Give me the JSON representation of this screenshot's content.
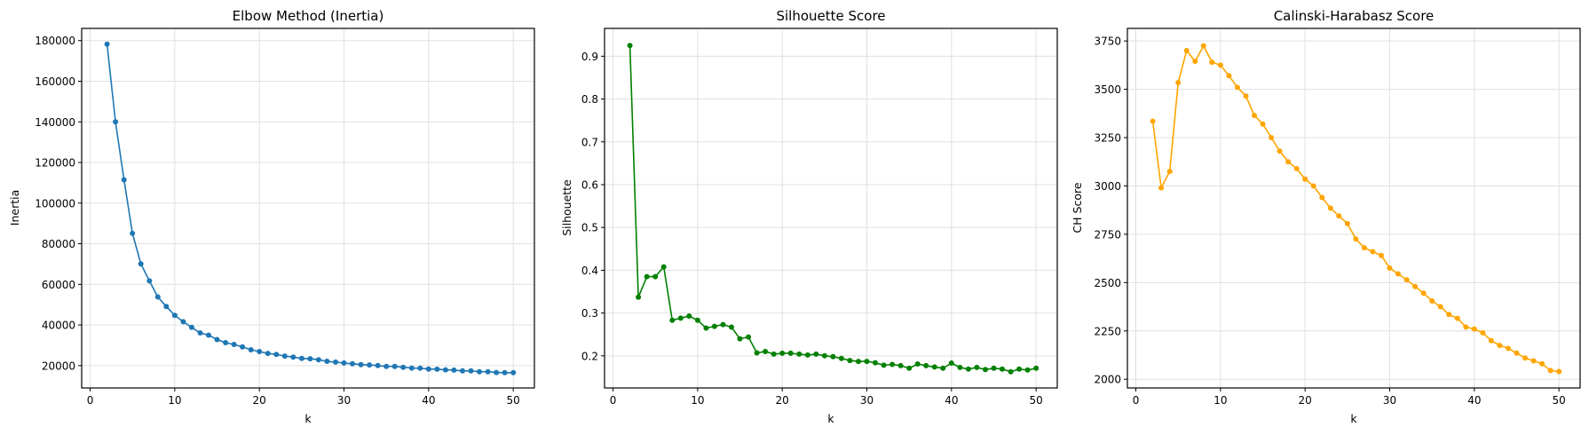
{
  "chart_data": [
    {
      "type": "line",
      "title": "Elbow Method (Inertia)",
      "xlabel": "k",
      "ylabel": "Inertia",
      "color": "#1f77b4",
      "marker": "circle",
      "grid": true,
      "xlim": [
        -1,
        52.5
      ],
      "ylim": [
        9000,
        186000
      ],
      "xticks": [
        0,
        10,
        20,
        30,
        40,
        50
      ],
      "yticks": [
        20000,
        40000,
        60000,
        80000,
        100000,
        120000,
        140000,
        160000,
        180000
      ],
      "x": [
        2,
        3,
        4,
        5,
        6,
        7,
        8,
        9,
        10,
        11,
        12,
        13,
        14,
        15,
        16,
        17,
        18,
        19,
        20,
        21,
        22,
        23,
        24,
        25,
        26,
        27,
        28,
        29,
        30,
        31,
        32,
        33,
        34,
        35,
        36,
        37,
        38,
        39,
        40,
        41,
        42,
        43,
        44,
        45,
        46,
        47,
        48,
        49,
        50
      ],
      "values": [
        178200,
        140000,
        111500,
        85100,
        70100,
        61700,
        53800,
        49100,
        44700,
        41600,
        38800,
        36100,
        35000,
        32800,
        31300,
        30400,
        29200,
        27800,
        26900,
        26000,
        25500,
        24700,
        24200,
        23500,
        23400,
        22900,
        22100,
        21700,
        21300,
        20900,
        20500,
        20300,
        20000,
        19600,
        19600,
        19200,
        18800,
        18700,
        18300,
        18200,
        17900,
        17800,
        17400,
        17400,
        17000,
        17000,
        16600,
        16500,
        16500
      ]
    },
    {
      "type": "line",
      "title": "Silhouette Score",
      "xlabel": "k",
      "ylabel": "Silhouette",
      "color": "#008000",
      "marker": "circle",
      "grid": true,
      "xlim": [
        -1,
        52.5
      ],
      "ylim": [
        0.125,
        0.965
      ],
      "xticks": [
        0,
        10,
        20,
        30,
        40,
        50
      ],
      "yticks": [
        0.2,
        0.3,
        0.4,
        0.5,
        0.6,
        0.7,
        0.8,
        0.9
      ],
      "x": [
        2,
        3,
        4,
        5,
        6,
        7,
        8,
        9,
        10,
        11,
        12,
        13,
        14,
        15,
        16,
        17,
        18,
        19,
        20,
        21,
        22,
        23,
        24,
        25,
        26,
        27,
        28,
        29,
        30,
        31,
        32,
        33,
        34,
        35,
        36,
        37,
        38,
        39,
        40,
        41,
        42,
        43,
        44,
        45,
        46,
        47,
        48,
        49,
        50
      ],
      "values": [
        0.925,
        0.337,
        0.385,
        0.385,
        0.408,
        0.283,
        0.288,
        0.293,
        0.283,
        0.265,
        0.269,
        0.273,
        0.267,
        0.24,
        0.244,
        0.207,
        0.21,
        0.204,
        0.206,
        0.206,
        0.204,
        0.202,
        0.204,
        0.2,
        0.198,
        0.194,
        0.189,
        0.187,
        0.187,
        0.184,
        0.178,
        0.18,
        0.177,
        0.171,
        0.181,
        0.177,
        0.174,
        0.171,
        0.183,
        0.173,
        0.169,
        0.173,
        0.168,
        0.171,
        0.169,
        0.163,
        0.169,
        0.167,
        0.171
      ]
    },
    {
      "type": "line",
      "title": "Calinski-Harabasz Score",
      "xlabel": "k",
      "ylabel": "CH Score",
      "color": "#ffa500",
      "marker": "circle",
      "grid": true,
      "xlim": [
        -1,
        52.5
      ],
      "ylim": [
        1955,
        3815
      ],
      "xticks": [
        0,
        10,
        20,
        30,
        40,
        50
      ],
      "yticks": [
        2000,
        2250,
        2500,
        2750,
        3000,
        3250,
        3500,
        3750
      ],
      "x": [
        2,
        3,
        4,
        5,
        6,
        7,
        8,
        9,
        10,
        11,
        12,
        13,
        14,
        15,
        16,
        17,
        18,
        19,
        20,
        21,
        22,
        23,
        24,
        25,
        26,
        27,
        28,
        29,
        30,
        31,
        32,
        33,
        34,
        35,
        36,
        37,
        38,
        39,
        40,
        41,
        42,
        43,
        44,
        45,
        46,
        47,
        48,
        49,
        50
      ],
      "values": [
        3335,
        2990,
        3075,
        3535,
        3700,
        3645,
        3725,
        3640,
        3625,
        3570,
        3510,
        3465,
        3365,
        3320,
        3250,
        3180,
        3125,
        3090,
        3035,
        3000,
        2940,
        2885,
        2845,
        2805,
        2725,
        2680,
        2660,
        2640,
        2575,
        2545,
        2515,
        2480,
        2445,
        2405,
        2375,
        2335,
        2315,
        2270,
        2260,
        2240,
        2200,
        2175,
        2160,
        2135,
        2110,
        2095,
        2080,
        2045,
        2040
      ]
    }
  ],
  "figure": {
    "panels": [
      {
        "title": "Elbow Method (Inertia)",
        "xlabel": "k",
        "ylabel": "Inertia"
      },
      {
        "title": "Silhouette Score",
        "xlabel": "k",
        "ylabel": "Silhouette"
      },
      {
        "title": "Calinski-Harabasz Score",
        "xlabel": "k",
        "ylabel": "CH Score"
      }
    ]
  }
}
